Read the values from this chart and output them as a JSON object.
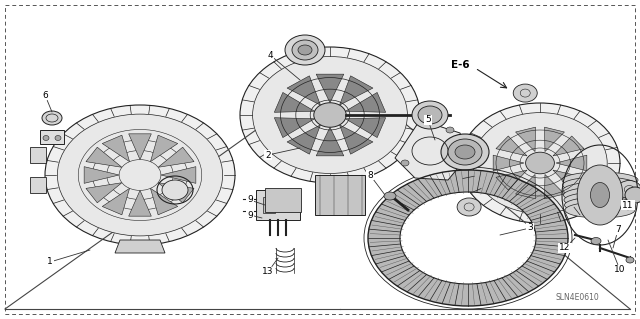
{
  "bg_color": "#ffffff",
  "line_color": "#222222",
  "text_color": "#000000",
  "diagram_code": "SLN4E0610",
  "fig_width": 6.4,
  "fig_height": 3.19,
  "dpi": 100,
  "border_dash": [
    4,
    3
  ],
  "border_lw": 0.7,
  "border_color": "#555555",
  "label_fontsize": 6.5,
  "e6_fontsize": 7.5,
  "code_fontsize": 5.5,
  "code_color": "#666666",
  "gray_fill": "#c8c8c8",
  "dark_fill": "#888888",
  "mid_fill": "#b0b0b0"
}
